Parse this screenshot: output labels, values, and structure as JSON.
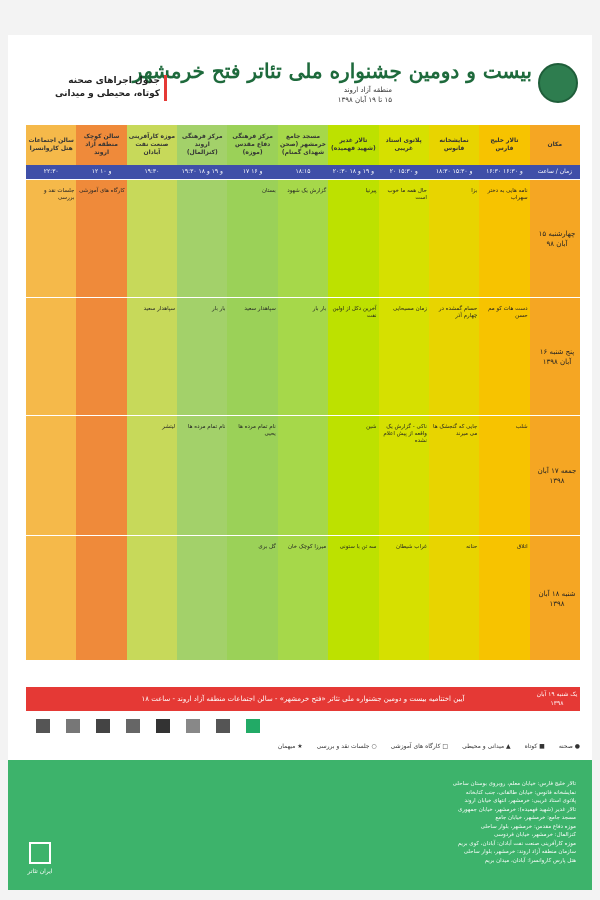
{
  "header": {
    "title": "بیست و دومین جشنواره ملی تئاتر فتح خرمشهر",
    "region": "منطقه آزاد اروند",
    "dates": "۱۵ تا ۱۹ آبان ۱۳۹۸",
    "table_title_1": "جدول اجراهای صحنه",
    "table_title_2": "کوتاه، محیطی و میدانی"
  },
  "columns": [
    {
      "name": "مکان",
      "time": "زمان / ساعت"
    },
    {
      "name": "تالار خلیج فارس",
      "time": "۱۶:۳۰ و ۱۶:۳۰"
    },
    {
      "name": "نمایشخانه فانوس",
      "time": "۱۸:۳۰ و ۱۵:۳۰"
    },
    {
      "name": "پلاتوی استاد غریبی",
      "time": "۲۰ و ۱۵:۳۰"
    },
    {
      "name": "تالار غدیر (شهید فهمیده)",
      "time": "۲۰:۳۰ و ۱۹ و ۱۸"
    },
    {
      "name": "مسجد جامع خرمشهر (صحن شهدای گمنام)",
      "time": "۱۸:۱۵"
    },
    {
      "name": "مرکز فرهنگی دفاع مقدس (موزه)",
      "time": "۱۷ و ۱۶"
    },
    {
      "name": "مرکز فرهنگی اروند (کنزالمال)",
      "time": "۱۹:۳۰ و ۱۹ و ۱۸"
    },
    {
      "name": "موزه کارآفرینی صنعت نفت آبادان",
      "time": "۱۹:۳۰"
    },
    {
      "name": "سالن کوچک منطقه آزاد اروند",
      "time": "۱۲ و ۱۰"
    },
    {
      "name": "سالن اجتماعات هتل کاروانسرا",
      "time": "۲۲:۳۰"
    }
  ],
  "days": [
    {
      "label": "چهارشنبه ۱۵ آبان ۹۸"
    },
    {
      "label": "پنج شنبه ۱۶ آبان ۱۳۹۸"
    },
    {
      "label": "جمعه ۱۷ آبان ۱۳۹۸"
    },
    {
      "label": "شنبه ۱۸ آبان ۱۳۹۸"
    }
  ],
  "cells": {
    "d1": [
      "نامه هایی به دختر سهراب",
      "بزا",
      "حال همه ما خوب است",
      "پیرنیا",
      "گزارش یک شهود",
      "بستان",
      "",
      "",
      "کارگاه های آموزشی",
      "جلسات نقد و بررسی"
    ],
    "d2": [
      "دست هات کو مم حسن",
      "حسام گمشده در چهارم آذر",
      "زمان مسیحایی",
      "آخرین دکل از اولین نفت",
      "بار بار",
      "سپاهدار سعید",
      "بار بار",
      "سپاهدار سعید",
      "",
      ""
    ],
    "d3": [
      "شلب",
      "جایی که گنجشک ها می میرند",
      "ناکی - گزارش یک واقعه از پیش اعلام نشده",
      "شین",
      "",
      "نام تمام مرده ها یحیی",
      "نام تمام مرده ها",
      "لیتشر",
      "",
      ""
    ],
    "d4": [
      "اتلاق",
      "حنانه",
      "غراب شیطان",
      "سه تن با ستونی",
      "میرزا کوچک خان",
      "گل بری",
      "",
      "",
      "",
      ""
    ]
  },
  "closing": {
    "day": "یک شنبه ۱۹ آبان ۱۳۹۸",
    "text": "آیین اختتامیه بیست و دومین جشنواره ملی تئاتر «فتح خرمشهر» - سالن اجتماعات منطقه آزاد اروند - ساعت ۱۸"
  },
  "legend": [
    "صحنه",
    "کوتاه",
    "میدانی و محیطی",
    "کارگاه های آموزشی",
    "جلسات نقد و بررسی",
    "میهمان"
  ],
  "venues": [
    "تالار خلیج فارس: خیابان معلم، روبروی بوستان ساحلی",
    "نمایشخانه فانوس: خیابان طالقانی، جنب کتابخانه",
    "پلاتوی استاد غریبی: خرمشهر، انتهای خیابان اروند",
    "تالار غدیر (شهید فهمیده): خرمشهر، خیابان جمهوری",
    "مسجد جامع: خرمشهر، خیابان جامع",
    "موزه دفاع مقدس: خرمشهر، بلوار ساحلی",
    "کنزالمال: خرمشهر، خیابان فردوسی",
    "موزه کارآفرینی صنعت نفت آبادان: آبادان، کوی بریم",
    "سازمان منطقه آزاد اروند: خرمشهر، بلوار ساحلی",
    "هتل پارس کاروانسرا: آبادان، میدان بریم"
  ],
  "brand": "ایران تئاتر",
  "colors": {
    "red": "#e53935",
    "green": "#3db36b",
    "blue": "#3f4fa8"
  }
}
